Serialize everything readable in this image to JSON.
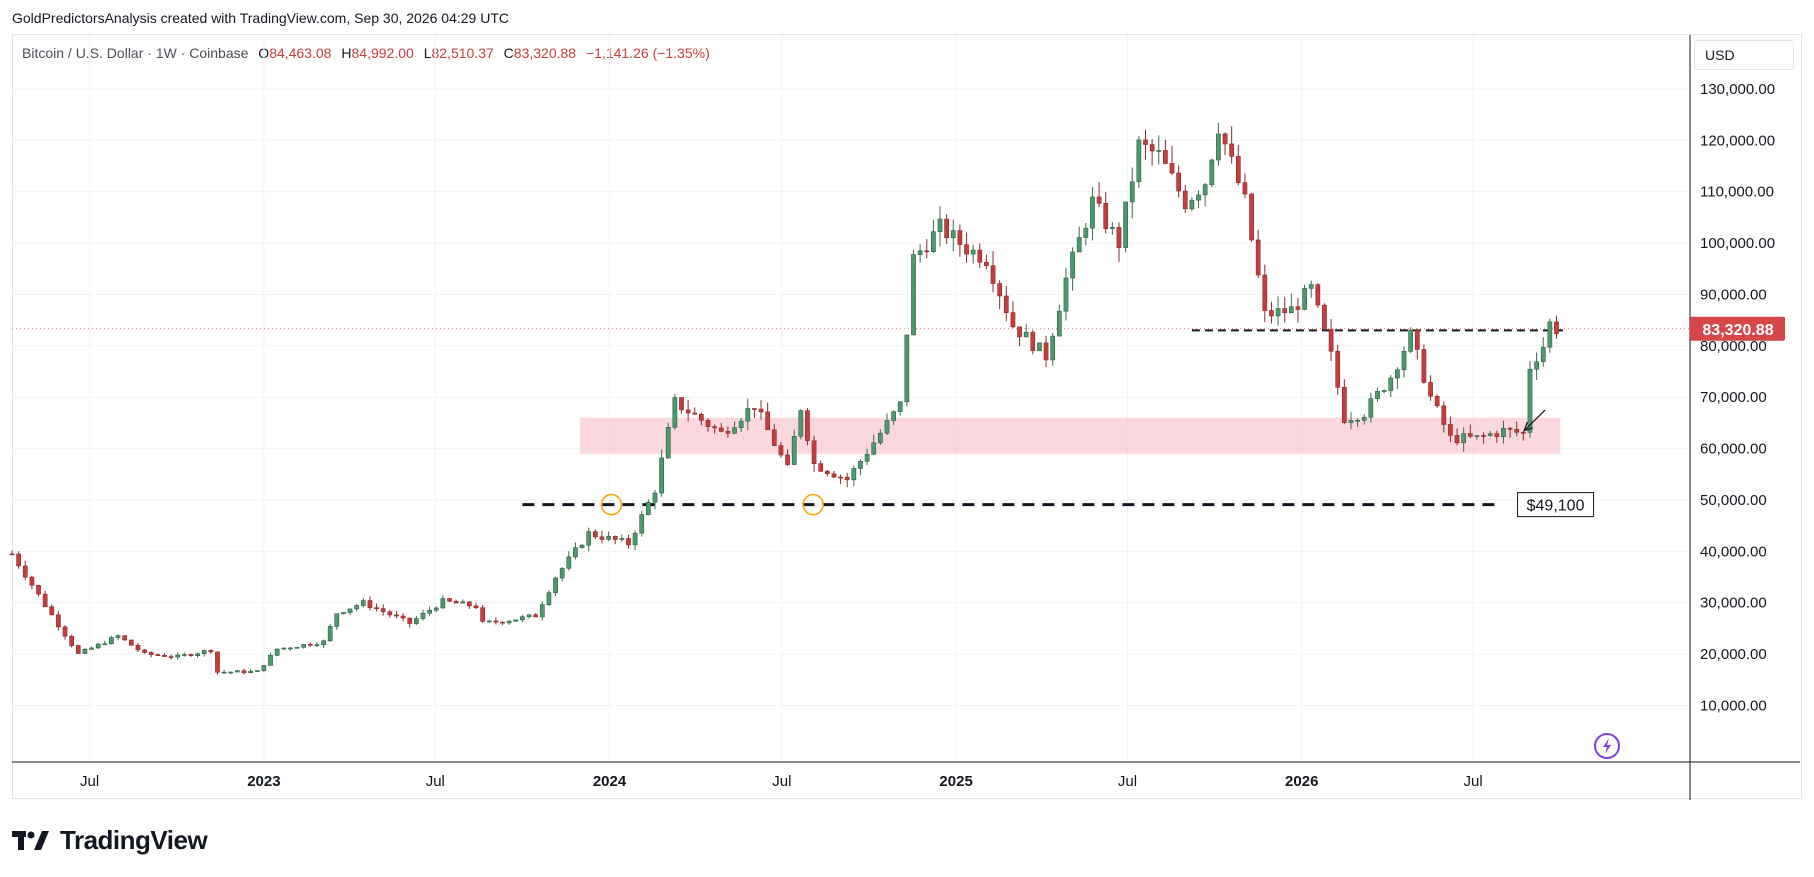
{
  "caption": "GoldPredictorsAnalysis created with TradingView.com, Sep 30, 2026 04:29 UTC",
  "header": {
    "symbol": "Bitcoin / U.S. Dollar · 1W · Coinbase",
    "o_label": "O",
    "o_value": "84,463.08",
    "h_label": "H",
    "h_value": "84,992.00",
    "l_label": "L",
    "l_value": "82,510.37",
    "c_label": "C",
    "c_value": "83,320.88",
    "change": "−1,141.26 (−1.35%)"
  },
  "currency_button": "USD",
  "footer_brand": "TradingView",
  "colors": {
    "up": "#26a69a",
    "up_body": "#4c9a6e",
    "down": "#c63d3d",
    "price_label_bg": "#d6474a",
    "zone": "#f8c8d0",
    "price_line": "#e07a5f",
    "marker": "#f0a500",
    "grid": "#f0f3fa"
  },
  "chart_data": {
    "type": "candlestick",
    "symbol": "Bitcoin / U.S. Dollar",
    "interval": "1W",
    "exchange": "Coinbase",
    "y_axis": {
      "ticks": [
        "10,000.00",
        "20,000.00",
        "30,000.00",
        "40,000.00",
        "50,000.00",
        "60,000.00",
        "70,000.00",
        "80,000.00",
        "90,000.00",
        "100,000.00",
        "110,000.00",
        "120,000.00",
        "130,000.00"
      ],
      "tick_values": [
        10000,
        20000,
        30000,
        40000,
        50000,
        60000,
        70000,
        80000,
        90000,
        100000,
        110000,
        120000,
        130000
      ],
      "ylim": [
        -1000,
        140500
      ]
    },
    "x_axis": {
      "labels": [
        "Jul",
        "2023",
        "Jul",
        "2024",
        "Jul",
        "2025",
        "Jul",
        "2026",
        "Jul"
      ],
      "label_dates": [
        "2022-07-01",
        "2023-01-01",
        "2023-07-01",
        "2024-01-01",
        "2024-07-01",
        "2025-01-01",
        "2025-07-01",
        "2026-01-01",
        "2026-07-01"
      ],
      "bold_labels": [
        "2023",
        "2024",
        "2025",
        "2026"
      ],
      "range": [
        "2022-04-10",
        "2027-02-15"
      ]
    },
    "last_price": 83320.88,
    "last_price_label": "83,320.88",
    "annotations": {
      "support_line": {
        "value": 49100,
        "label": "$49,100",
        "start": "2023-10-01",
        "end": "2026-07-31"
      },
      "resistance_line": {
        "value": 83000,
        "start": "2025-09-07",
        "end": "2026-10-04"
      },
      "support_zone": {
        "from": 59000,
        "to": 66000,
        "start": "2023-12-01",
        "end": "2026-10-01"
      },
      "circle_markers": [
        {
          "date": "2024-01-03",
          "value": 49100
        },
        {
          "date": "2024-08-03",
          "value": 49100
        }
      ],
      "arrow": {
        "from_date": "2026-09-15",
        "from_value": 67500,
        "to_date": "2026-08-24",
        "to_value": 63500
      }
    },
    "anchors": [
      [
        "2022-04-10",
        39500
      ],
      [
        "2022-05-15",
        29500
      ],
      [
        "2022-06-19",
        20000
      ],
      [
        "2022-07-31",
        23500
      ],
      [
        "2022-08-28",
        20000
      ],
      [
        "2022-10-02",
        19500
      ],
      [
        "2022-11-06",
        20800
      ],
      [
        "2022-11-13",
        16500
      ],
      [
        "2022-12-25",
        16600
      ],
      [
        "2023-01-15",
        21000
      ],
      [
        "2023-03-05",
        22400
      ],
      [
        "2023-03-19",
        28000
      ],
      [
        "2023-04-16",
        30000
      ],
      [
        "2023-06-04",
        26000
      ],
      [
        "2023-07-09",
        30300
      ],
      [
        "2023-08-13",
        29300
      ],
      [
        "2023-08-20",
        26000
      ],
      [
        "2023-09-17",
        26600
      ],
      [
        "2023-10-15",
        27500
      ],
      [
        "2023-11-05",
        35000
      ],
      [
        "2023-12-10",
        43500
      ],
      [
        "2024-01-21",
        41500
      ],
      [
        "2024-02-18",
        52000
      ],
      [
        "2024-03-10",
        69000
      ],
      [
        "2024-04-28",
        63000
      ],
      [
        "2024-06-02",
        68500
      ],
      [
        "2024-07-07",
        56000
      ],
      [
        "2024-07-21",
        68000
      ],
      [
        "2024-08-04",
        57000
      ],
      [
        "2024-09-08",
        54000
      ],
      [
        "2024-10-13",
        63000
      ],
      [
        "2024-11-03",
        68500
      ],
      [
        "2024-11-17",
        97000
      ],
      [
        "2024-12-15",
        103000
      ],
      [
        "2025-01-12",
        99000
      ],
      [
        "2025-02-02",
        97000
      ],
      [
        "2025-03-02",
        84000
      ],
      [
        "2025-04-06",
        78000
      ],
      [
        "2025-04-27",
        93000
      ],
      [
        "2025-05-25",
        108000
      ],
      [
        "2025-06-22",
        100000
      ],
      [
        "2025-07-13",
        119000
      ],
      [
        "2025-08-03",
        117000
      ],
      [
        "2025-08-31",
        108000
      ],
      [
        "2025-09-21",
        112000
      ],
      [
        "2025-10-05",
        123000
      ],
      [
        "2025-11-02",
        108000
      ],
      [
        "2025-11-23",
        86000
      ],
      [
        "2025-12-21",
        87000
      ],
      [
        "2026-01-11",
        91000
      ],
      [
        "2026-02-01",
        78000
      ],
      [
        "2026-02-15",
        66000
      ],
      [
        "2026-03-08",
        67000
      ],
      [
        "2026-04-05",
        74000
      ],
      [
        "2026-04-26",
        82000
      ],
      [
        "2026-05-17",
        70000
      ],
      [
        "2026-06-07",
        62000
      ],
      [
        "2026-07-05",
        62000
      ],
      [
        "2026-08-02",
        63500
      ],
      [
        "2026-08-23",
        63000
      ],
      [
        "2026-08-30",
        76000
      ],
      [
        "2026-09-13",
        80000
      ],
      [
        "2026-09-20",
        84300
      ],
      [
        "2026-09-27",
        83320
      ]
    ]
  }
}
